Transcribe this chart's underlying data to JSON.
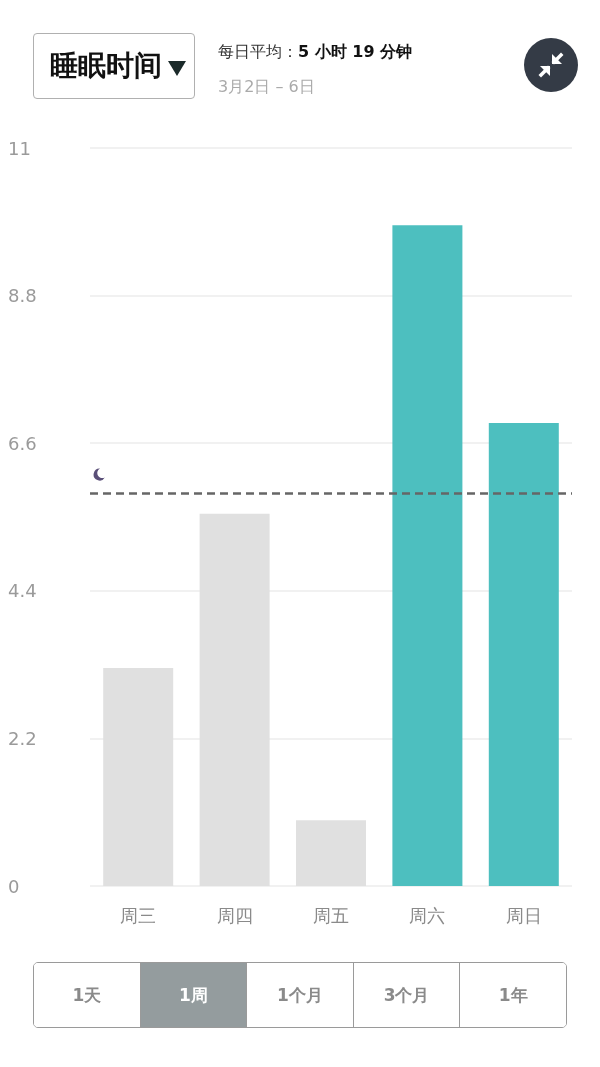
{
  "chart_data": {
    "type": "bar",
    "title": "睡眠时间",
    "subtitle": "每日平均：5 小时 19 分钟",
    "annotations": [
      "3月2日 – 6日",
      "1天",
      "1周",
      "1个月",
      "3个月",
      "1年"
    ],
    "categories": [
      "周三",
      "周四",
      "周五",
      "周六",
      "周日"
    ],
    "values": [
      3.25,
      5.55,
      0.98,
      9.85,
      6.9
    ],
    "colors": [
      "#e0e0e0",
      "#e0e0e0",
      "#e0e0e0",
      "#4dbfbf",
      "#4dbfbf"
    ],
    "ylim": [
      0,
      11
    ],
    "yticks": [
      0,
      2.2,
      4.4,
      6.6,
      8.8,
      11
    ],
    "grid": "y",
    "ref_lines": [
      {
        "axis": "y",
        "value": 5.85,
        "color": "#666666",
        "line_style": "dashed"
      }
    ]
  }
}
